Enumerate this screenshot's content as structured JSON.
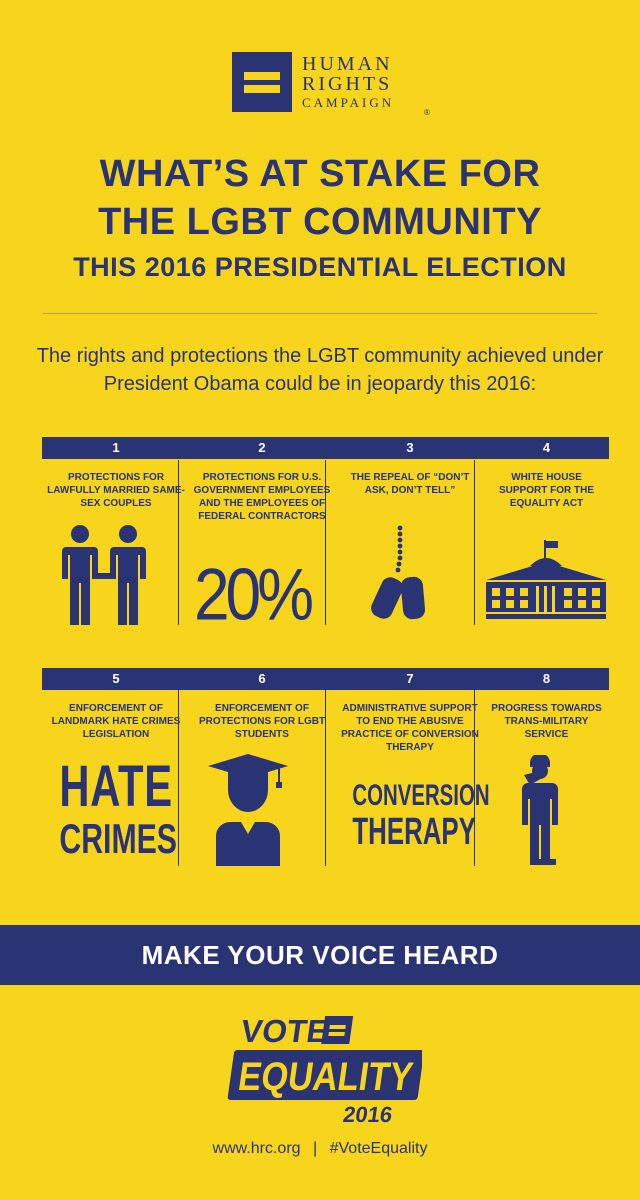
{
  "logo": {
    "line1": "HUMAN",
    "line2": "RIGHTS",
    "line3": "CAMPAIGN",
    "registered": "®"
  },
  "headline": {
    "line1": "WHAT’S AT STAKE FOR",
    "line2": "THE LGBT COMMUNITY",
    "line3": "THIS 2016 PRESIDENTIAL ELECTION"
  },
  "intro": "The rights and protections the LGBT community achieved under President Obama could be in jeopardy this 2016:",
  "items": [
    {
      "number": "1",
      "text": "PROTECTIONS FOR LAWFULLY MARRIED SAME-SEX COUPLES",
      "icon": "couple-icon"
    },
    {
      "number": "2",
      "text": "PROTECTIONS FOR U.S. GOVERNMENT EMPLOYEES AND THE EMPLOYEES OF FEDERAL CONTRACTORS",
      "graphic": "20%"
    },
    {
      "number": "3",
      "text": "THE REPEAL OF “DON’T ASK, DON’T TELL”",
      "icon": "dog-tags-icon"
    },
    {
      "number": "4",
      "text": "WHITE HOUSE SUPPORT FOR THE EQUALITY ACT",
      "icon": "white-house-icon"
    },
    {
      "number": "5",
      "text": "ENFORCEMENT OF LANDMARK HATE CRIMES LEGISLATION",
      "graphic_line1": "HATE",
      "graphic_line2": "CRIMES"
    },
    {
      "number": "6",
      "text": "ENFORCEMENT OF PROTECTIONS FOR LGBT STUDENTS",
      "icon": "graduate-icon"
    },
    {
      "number": "7",
      "text": "ADMINISTRATIVE SUPPORT TO END THE ABUSIVE PRACTICE OF CONVERSION THERAPY",
      "graphic_line1": "CONVERSION",
      "graphic_line2": "THERAPY"
    },
    {
      "number": "8",
      "text": "PROGRESS TOWARDS TRANS-MILITARY SERVICE",
      "icon": "saluting-soldier-icon"
    }
  ],
  "banner": "MAKE YOUR VOICE HEARD",
  "vote_logo": {
    "word1": "VOTE",
    "word2": "EQUALITY",
    "year": "2016"
  },
  "footer": {
    "website": "www.hrc.org",
    "separator": "|",
    "hashtag": "#VoteEquality"
  },
  "colors": {
    "background": "#f7d51d",
    "navy": "#2a3373",
    "white": "#ffffff"
  }
}
